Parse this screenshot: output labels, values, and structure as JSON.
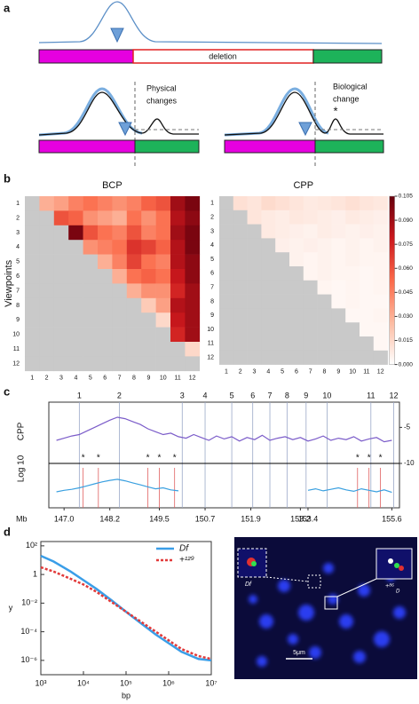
{
  "panel_labels": [
    "a",
    "b",
    "c",
    "d"
  ],
  "schematic": {
    "deletion": "deletion",
    "physical": [
      "Physical",
      "changes"
    ],
    "biological": [
      "Biological",
      "change"
    ],
    "asterisk": "*"
  },
  "micrograph": {
    "inset_label": "Df",
    "scale_bar": "5μm",
    "spot_label": "+⁸⁶",
    "spot_sub": "D"
  },
  "chart_data": [
    {
      "type": "heatmap",
      "title": "BCP",
      "ylabel": "Viewpoints",
      "categories": [
        1,
        2,
        3,
        4,
        5,
        6,
        7,
        8,
        9,
        10,
        11,
        12
      ],
      "colormap": [
        "#ffffff",
        "#fcbba1",
        "#fb6a4a",
        "#cb181d",
        "#67000d"
      ],
      "missing_color": "#c9c9c9",
      "clim": [
        0,
        0.105
      ],
      "rows": [
        [
          null,
          0.03,
          0.035,
          0.045,
          0.05,
          0.045,
          0.04,
          0.045,
          0.055,
          0.06,
          0.09,
          0.1
        ],
        [
          null,
          null,
          0.06,
          0.055,
          0.04,
          0.035,
          0.03,
          0.05,
          0.04,
          0.05,
          0.085,
          0.095
        ],
        [
          null,
          null,
          null,
          0.1,
          0.06,
          0.05,
          0.045,
          0.06,
          0.045,
          0.05,
          0.09,
          0.1
        ],
        [
          null,
          null,
          null,
          null,
          0.04,
          0.045,
          0.05,
          0.07,
          0.065,
          0.055,
          0.085,
          0.1
        ],
        [
          null,
          null,
          null,
          null,
          null,
          0.03,
          0.045,
          0.065,
          0.05,
          0.045,
          0.085,
          0.095
        ],
        [
          null,
          null,
          null,
          null,
          null,
          null,
          0.03,
          0.05,
          0.055,
          0.05,
          0.08,
          0.095
        ],
        [
          null,
          null,
          null,
          null,
          null,
          null,
          null,
          0.03,
          0.04,
          0.04,
          0.075,
          0.09
        ],
        [
          null,
          null,
          null,
          null,
          null,
          null,
          null,
          null,
          0.02,
          0.035,
          0.085,
          0.09
        ],
        [
          null,
          null,
          null,
          null,
          null,
          null,
          null,
          null,
          null,
          0.015,
          0.08,
          0.09
        ],
        [
          null,
          null,
          null,
          null,
          null,
          null,
          null,
          null,
          null,
          null,
          0.075,
          0.09
        ],
        [
          null,
          null,
          null,
          null,
          null,
          null,
          null,
          null,
          null,
          null,
          null,
          0.015
        ],
        [
          null,
          null,
          null,
          null,
          null,
          null,
          null,
          null,
          null,
          null,
          null,
          null
        ]
      ]
    },
    {
      "type": "heatmap",
      "title": "CPP",
      "categories": [
        1,
        2,
        3,
        4,
        5,
        6,
        7,
        8,
        9,
        10,
        11,
        12
      ],
      "colormap": [
        "#ffffff",
        "#fcbba1",
        "#fb6a4a",
        "#cb181d",
        "#67000d"
      ],
      "missing_color": "#c9c9c9",
      "clim": [
        0,
        0.105
      ],
      "cticks": [
        {
          "value": 0,
          "label": "0.000"
        },
        0.015,
        {
          "value": 0.03,
          "label": "0.030"
        },
        0.045,
        {
          "value": 0.06,
          "label": "0.060"
        },
        0.075,
        {
          "value": 0.09,
          "label": "0.090"
        },
        0.105
      ],
      "rows": [
        [
          null,
          0.012,
          0.01,
          0.014,
          0.012,
          0.01,
          0.008,
          0.009,
          0.01,
          0.012,
          0.01,
          0.009
        ],
        [
          null,
          null,
          0.01,
          0.008,
          0.007,
          0.009,
          0.008,
          0.007,
          0.006,
          0.008,
          0.007,
          0.006
        ],
        [
          null,
          null,
          null,
          0.008,
          0.007,
          0.006,
          0.005,
          0.007,
          0.006,
          0.005,
          0.006,
          0.005
        ],
        [
          null,
          null,
          null,
          null,
          0.006,
          0.005,
          0.006,
          0.005,
          0.004,
          0.005,
          0.004,
          0.005
        ],
        [
          null,
          null,
          null,
          null,
          null,
          0.005,
          0.004,
          0.005,
          0.004,
          0.005,
          0.004,
          0.004
        ],
        [
          null,
          null,
          null,
          null,
          null,
          null,
          0.004,
          0.005,
          0.004,
          0.004,
          0.003,
          0.004
        ],
        [
          null,
          null,
          null,
          null,
          null,
          null,
          null,
          0.004,
          0.003,
          0.004,
          0.003,
          0.004
        ],
        [
          null,
          null,
          null,
          null,
          null,
          null,
          null,
          null,
          0.003,
          0.004,
          0.003,
          0.003
        ],
        [
          null,
          null,
          null,
          null,
          null,
          null,
          null,
          null,
          null,
          0.003,
          0.003,
          0.004
        ],
        [
          null,
          null,
          null,
          null,
          null,
          null,
          null,
          null,
          null,
          null,
          0.003,
          0.003
        ],
        [
          null,
          null,
          null,
          null,
          null,
          null,
          null,
          null,
          null,
          null,
          null,
          0.003
        ],
        [
          null,
          null,
          null,
          null,
          null,
          null,
          null,
          null,
          null,
          null,
          null,
          null
        ]
      ]
    },
    {
      "type": "track",
      "ylabel": [
        "Log 10",
        "CPP"
      ],
      "xlabel": "Mb",
      "xlim": [
        146.6,
        155.8
      ],
      "xticks": [
        {
          "value": 147,
          "label": "147.0"
        },
        148.2,
        149.5,
        150.7,
        151.9,
        153.2,
        153.4,
        155.6
      ],
      "ylim": [
        -10,
        -2
      ],
      "yticks": [
        -5,
        -10
      ],
      "y2lim": [
        -10,
        -2
      ],
      "markers": {
        "labels": [
          1,
          2,
          3,
          4,
          5,
          6,
          7,
          8,
          9,
          10,
          11,
          12
        ],
        "positions": [
          147.4,
          148.45,
          150.1,
          150.7,
          151.4,
          151.95,
          152.4,
          152.85,
          153.35,
          153.9,
          155.05,
          155.65
        ],
        "color": "#9aa8c8"
      },
      "annotations": {
        "text": "*",
        "positions": [
          147.5,
          147.9,
          149.2,
          149.5,
          149.9,
          154.7,
          155.0,
          155.3
        ],
        "color": "#e06060"
      },
      "x": [
        146.8,
        147.0,
        147.2,
        147.4,
        147.6,
        147.8,
        148.0,
        148.2,
        148.4,
        148.6,
        148.8,
        149.0,
        149.2,
        149.4,
        149.6,
        149.8,
        150.0,
        150.2,
        150.4,
        150.6,
        150.8,
        151.0,
        151.2,
        151.4,
        151.6,
        151.8,
        152.0,
        152.2,
        152.4,
        152.6,
        152.8,
        153.0,
        153.2,
        153.4,
        153.6,
        153.8,
        154.0,
        154.2,
        154.4,
        154.6,
        154.8,
        155.0,
        155.2,
        155.4,
        155.6
      ],
      "series": [
        {
          "color": "#7b5cc9",
          "values": [
            -6.8,
            -6.5,
            -6.2,
            -6.0,
            -5.5,
            -5.0,
            -4.5,
            -4.0,
            -3.6,
            -3.8,
            -4.2,
            -4.6,
            -5.2,
            -5.6,
            -6.0,
            -5.8,
            -6.3,
            -6.5,
            -6.0,
            -6.4,
            -6.8,
            -6.2,
            -6.6,
            -6.3,
            -6.9,
            -6.4,
            -6.7,
            -6.1,
            -6.8,
            -6.5,
            -6.3,
            -6.7,
            -6.4,
            -6.9,
            -6.6,
            -6.2,
            -6.8,
            -6.5,
            -6.7,
            -6.3,
            -6.9,
            -6.6,
            -6.4,
            -7.0,
            -6.8
          ]
        },
        {
          "color": "#3aa0e0",
          "axis": "y2",
          "values": [
            -6.8,
            -6.5,
            -6.3,
            -6.0,
            -5.6,
            -5.2,
            -4.8,
            -4.5,
            -4.3,
            -4.6,
            -5.0,
            -5.4,
            -5.8,
            -6.2,
            -6.0,
            -6.4,
            -6.6,
            null,
            null,
            null,
            null,
            null,
            null,
            null,
            null,
            null,
            null,
            null,
            null,
            null,
            null,
            null,
            null,
            -6.5,
            -6.2,
            -6.6,
            -6.3,
            -6.0,
            -6.4,
            -6.7,
            -6.2,
            -6.5,
            -6.8,
            -6.4,
            -6.9
          ]
        }
      ]
    },
    {
      "type": "line",
      "xlabel": "bp",
      "ylabel": "y",
      "log_x": true,
      "log_y": true,
      "legend": "upper right",
      "xlim": [
        1000,
        10000000
      ],
      "xticks": [
        {
          "value": 1000,
          "label": "10³"
        },
        {
          "value": 10000,
          "label": "10⁴"
        },
        {
          "value": 100000,
          "label": "10⁵"
        },
        {
          "value": 1000000,
          "label": "10⁶"
        },
        {
          "value": 10000000,
          "label": "10⁷"
        }
      ],
      "ylim": [
        1e-07,
        200
      ],
      "yticks": [
        {
          "value": 100,
          "label": "10²"
        },
        1,
        {
          "value": 0.01,
          "label": "10⁻²"
        },
        {
          "value": 0.0001,
          "label": "10⁻⁴"
        },
        {
          "value": 1e-06,
          "label": "10⁻⁶"
        }
      ],
      "x": [
        1000,
        2000,
        5000,
        10000,
        20000,
        50000,
        100000,
        200000,
        500000,
        1000000,
        2000000,
        5000000,
        10000000
      ],
      "series": [
        {
          "name": "Df",
          "color": "#3a9ee8",
          "dash": false,
          "values": [
            20,
            8,
            1.6,
            0.4,
            0.1,
            0.0126,
            0.0025,
            0.0005,
            6.3e-05,
            1.6e-05,
            4e-06,
            1.26e-06,
            1e-06
          ]
        },
        {
          "name": "+¹²⁹",
          "color": "#e23a3a",
          "dash": true,
          "values": [
            3.2,
            1.6,
            0.5,
            0.2,
            0.063,
            0.01,
            0.0025,
            0.00063,
            0.0001,
            2.5e-05,
            6.3e-06,
            2e-06,
            1.26e-06
          ]
        }
      ]
    }
  ]
}
